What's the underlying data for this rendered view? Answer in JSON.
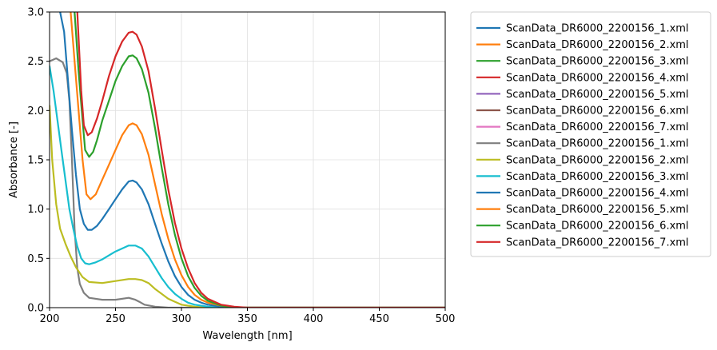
{
  "chart_data": {
    "type": "line",
    "title": "",
    "xlabel": "Wavelength [nm]",
    "ylabel": "Absorbance [-]",
    "xlim": [
      200,
      500
    ],
    "ylim": [
      0,
      3
    ],
    "xticks": [
      200,
      250,
      300,
      350,
      400,
      450,
      500
    ],
    "yticks": [
      0.0,
      0.5,
      1.0,
      1.5,
      2.0,
      2.5,
      3.0
    ],
    "xtick_labels": [
      "200",
      "250",
      "300",
      "350",
      "400",
      "450",
      "500"
    ],
    "ytick_labels": [
      "0.0",
      "0.5",
      "1.0",
      "1.5",
      "2.0",
      "2.5",
      "3.0"
    ],
    "grid": true,
    "legend_position": "outside-right",
    "series": [
      {
        "name": "ScanData_DR6000_2200156_1.xml",
        "color": "#1f77b4",
        "points": []
      },
      {
        "name": "ScanData_DR6000_2200156_2.xml",
        "color": "#ff7f0e",
        "points": []
      },
      {
        "name": "ScanData_DR6000_2200156_3.xml",
        "color": "#2ca02c",
        "points": []
      },
      {
        "name": "ScanData_DR6000_2200156_4.xml",
        "color": "#d62728",
        "points": []
      },
      {
        "name": "ScanData_DR6000_2200156_5.xml",
        "color": "#9467bd",
        "points": []
      },
      {
        "name": "ScanData_DR6000_2200156_6.xml",
        "color": "#8c564b",
        "points": []
      },
      {
        "name": "ScanData_DR6000_2200156_7.xml",
        "color": "#e377c2",
        "points": []
      },
      {
        "name": "ScanData_DR6000_2200156_1.xml",
        "color": "#7f7f7f",
        "points": [
          [
            200,
            2.5
          ],
          [
            205,
            2.53
          ],
          [
            210,
            2.49
          ],
          [
            213,
            2.38
          ],
          [
            215,
            2.1
          ],
          [
            217,
            1.5
          ],
          [
            219,
            0.8
          ],
          [
            221,
            0.4
          ],
          [
            223,
            0.24
          ],
          [
            226,
            0.15
          ],
          [
            230,
            0.1
          ],
          [
            240,
            0.08
          ],
          [
            250,
            0.08
          ],
          [
            260,
            0.1
          ],
          [
            265,
            0.08
          ],
          [
            268,
            0.06
          ],
          [
            272,
            0.03
          ],
          [
            280,
            0.01
          ],
          [
            290,
            0.0
          ],
          [
            500,
            0.0
          ]
        ]
      },
      {
        "name": "ScanData_DR6000_2200156_2.xml",
        "color": "#bcbd22",
        "points": [
          [
            200,
            2.05
          ],
          [
            202,
            1.5
          ],
          [
            205,
            1.05
          ],
          [
            208,
            0.8
          ],
          [
            212,
            0.65
          ],
          [
            216,
            0.52
          ],
          [
            220,
            0.41
          ],
          [
            225,
            0.31
          ],
          [
            230,
            0.26
          ],
          [
            240,
            0.25
          ],
          [
            250,
            0.27
          ],
          [
            260,
            0.29
          ],
          [
            265,
            0.29
          ],
          [
            270,
            0.28
          ],
          [
            275,
            0.25
          ],
          [
            280,
            0.19
          ],
          [
            285,
            0.14
          ],
          [
            290,
            0.09
          ],
          [
            295,
            0.06
          ],
          [
            300,
            0.03
          ],
          [
            310,
            0.01
          ],
          [
            320,
            0.0
          ],
          [
            500,
            0.0
          ]
        ]
      },
      {
        "name": "ScanData_DR6000_2200156_3.xml",
        "color": "#17becf",
        "points": [
          [
            200,
            2.45
          ],
          [
            203,
            2.2
          ],
          [
            206,
            1.9
          ],
          [
            209,
            1.6
          ],
          [
            212,
            1.3
          ],
          [
            215,
            1.0
          ],
          [
            218,
            0.8
          ],
          [
            221,
            0.62
          ],
          [
            224,
            0.5
          ],
          [
            227,
            0.45
          ],
          [
            230,
            0.44
          ],
          [
            235,
            0.46
          ],
          [
            240,
            0.49
          ],
          [
            245,
            0.53
          ],
          [
            250,
            0.57
          ],
          [
            255,
            0.6
          ],
          [
            260,
            0.63
          ],
          [
            265,
            0.63
          ],
          [
            270,
            0.6
          ],
          [
            275,
            0.52
          ],
          [
            280,
            0.41
          ],
          [
            285,
            0.3
          ],
          [
            290,
            0.21
          ],
          [
            295,
            0.14
          ],
          [
            300,
            0.09
          ],
          [
            305,
            0.05
          ],
          [
            310,
            0.03
          ],
          [
            320,
            0.01
          ],
          [
            330,
            0.0
          ],
          [
            500,
            0.0
          ]
        ]
      },
      {
        "name": "ScanData_DR6000_2200156_4.xml",
        "color": "#1f77b4",
        "points": [
          [
            208,
            3.0
          ],
          [
            211,
            2.8
          ],
          [
            214,
            2.3
          ],
          [
            217,
            1.8
          ],
          [
            220,
            1.35
          ],
          [
            223,
            1.0
          ],
          [
            226,
            0.85
          ],
          [
            229,
            0.79
          ],
          [
            232,
            0.79
          ],
          [
            236,
            0.83
          ],
          [
            240,
            0.9
          ],
          [
            245,
            1.0
          ],
          [
            250,
            1.1
          ],
          [
            255,
            1.2
          ],
          [
            260,
            1.28
          ],
          [
            263,
            1.29
          ],
          [
            266,
            1.27
          ],
          [
            270,
            1.2
          ],
          [
            275,
            1.05
          ],
          [
            280,
            0.85
          ],
          [
            285,
            0.65
          ],
          [
            290,
            0.47
          ],
          [
            295,
            0.32
          ],
          [
            300,
            0.21
          ],
          [
            305,
            0.13
          ],
          [
            310,
            0.08
          ],
          [
            315,
            0.05
          ],
          [
            320,
            0.03
          ],
          [
            330,
            0.01
          ],
          [
            340,
            0.0
          ],
          [
            500,
            0.0
          ]
        ]
      },
      {
        "name": "ScanData_DR6000_2200156_5.xml",
        "color": "#ff7f0e",
        "points": [
          [
            216,
            3.0
          ],
          [
            219,
            2.5
          ],
          [
            222,
            2.0
          ],
          [
            225,
            1.5
          ],
          [
            228,
            1.15
          ],
          [
            231,
            1.1
          ],
          [
            235,
            1.15
          ],
          [
            240,
            1.3
          ],
          [
            245,
            1.45
          ],
          [
            250,
            1.6
          ],
          [
            255,
            1.75
          ],
          [
            260,
            1.85
          ],
          [
            263,
            1.87
          ],
          [
            266,
            1.85
          ],
          [
            270,
            1.76
          ],
          [
            275,
            1.55
          ],
          [
            280,
            1.25
          ],
          [
            285,
            0.95
          ],
          [
            290,
            0.7
          ],
          [
            295,
            0.49
          ],
          [
            300,
            0.33
          ],
          [
            305,
            0.21
          ],
          [
            310,
            0.13
          ],
          [
            315,
            0.08
          ],
          [
            320,
            0.05
          ],
          [
            330,
            0.02
          ],
          [
            340,
            0.0
          ],
          [
            500,
            0.0
          ]
        ]
      },
      {
        "name": "ScanData_DR6000_2200156_6.xml",
        "color": "#2ca02c",
        "points": [
          [
            219,
            3.0
          ],
          [
            222,
            2.4
          ],
          [
            225,
            1.9
          ],
          [
            227,
            1.6
          ],
          [
            230,
            1.53
          ],
          [
            233,
            1.58
          ],
          [
            236,
            1.7
          ],
          [
            240,
            1.9
          ],
          [
            245,
            2.1
          ],
          [
            250,
            2.3
          ],
          [
            255,
            2.45
          ],
          [
            260,
            2.55
          ],
          [
            263,
            2.56
          ],
          [
            266,
            2.53
          ],
          [
            270,
            2.42
          ],
          [
            275,
            2.18
          ],
          [
            280,
            1.82
          ],
          [
            285,
            1.42
          ],
          [
            290,
            1.05
          ],
          [
            295,
            0.74
          ],
          [
            300,
            0.5
          ],
          [
            305,
            0.32
          ],
          [
            310,
            0.2
          ],
          [
            315,
            0.12
          ],
          [
            320,
            0.07
          ],
          [
            330,
            0.02
          ],
          [
            340,
            0.0
          ],
          [
            500,
            0.0
          ]
        ]
      },
      {
        "name": "ScanData_DR6000_2200156_7.xml",
        "color": "#d62728",
        "points": [
          [
            221,
            3.0
          ],
          [
            224,
            2.2
          ],
          [
            226,
            1.85
          ],
          [
            229,
            1.75
          ],
          [
            232,
            1.78
          ],
          [
            236,
            1.92
          ],
          [
            240,
            2.1
          ],
          [
            245,
            2.35
          ],
          [
            250,
            2.55
          ],
          [
            255,
            2.7
          ],
          [
            260,
            2.79
          ],
          [
            263,
            2.8
          ],
          [
            266,
            2.77
          ],
          [
            270,
            2.65
          ],
          [
            275,
            2.4
          ],
          [
            280,
            2.02
          ],
          [
            285,
            1.6
          ],
          [
            290,
            1.2
          ],
          [
            295,
            0.86
          ],
          [
            300,
            0.6
          ],
          [
            305,
            0.4
          ],
          [
            310,
            0.25
          ],
          [
            315,
            0.15
          ],
          [
            320,
            0.09
          ],
          [
            330,
            0.03
          ],
          [
            340,
            0.01
          ],
          [
            350,
            0.0
          ],
          [
            500,
            0.0
          ]
        ]
      }
    ]
  }
}
